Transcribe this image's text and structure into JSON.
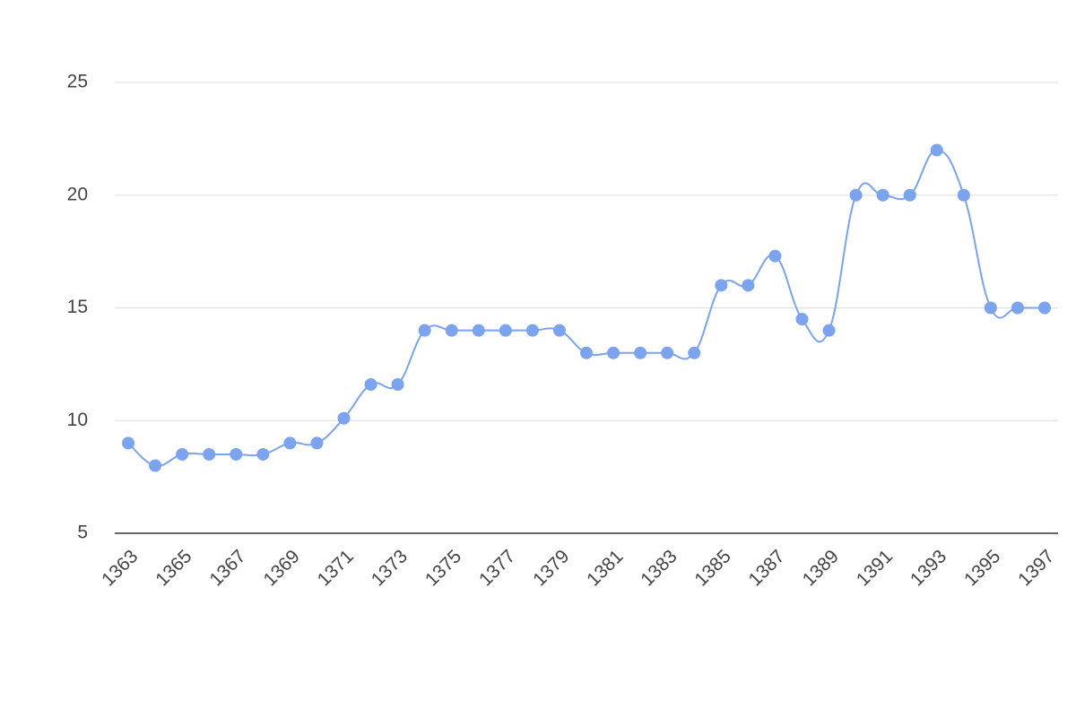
{
  "chart_data": {
    "type": "line",
    "x": [
      1363,
      1364,
      1365,
      1366,
      1367,
      1368,
      1369,
      1370,
      1371,
      1372,
      1373,
      1374,
      1375,
      1376,
      1377,
      1378,
      1379,
      1380,
      1381,
      1382,
      1383,
      1384,
      1385,
      1386,
      1387,
      1388,
      1389,
      1390,
      1391,
      1392,
      1393,
      1394,
      1395,
      1396,
      1397
    ],
    "series": [
      {
        "color": "#7ba3ee",
        "values": [
          9,
          8,
          8.5,
          8.5,
          8.5,
          8.5,
          9,
          9,
          10.1,
          11.6,
          11.6,
          14,
          14,
          14,
          14,
          14,
          14,
          13,
          13,
          13,
          13,
          13,
          16,
          16,
          17.3,
          14.5,
          14,
          20,
          20,
          20,
          22,
          20,
          15,
          15,
          15
        ]
      }
    ],
    "xlim": [
      1362.5,
      1397.5
    ],
    "xticks": [
      1363,
      1365,
      1367,
      1369,
      1371,
      1373,
      1375,
      1377,
      1379,
      1381,
      1383,
      1385,
      1387,
      1389,
      1391,
      1393,
      1395,
      1397
    ],
    "ylim": [
      5,
      25
    ],
    "yticks": [
      5,
      10,
      15,
      20,
      25
    ],
    "grid": true
  }
}
